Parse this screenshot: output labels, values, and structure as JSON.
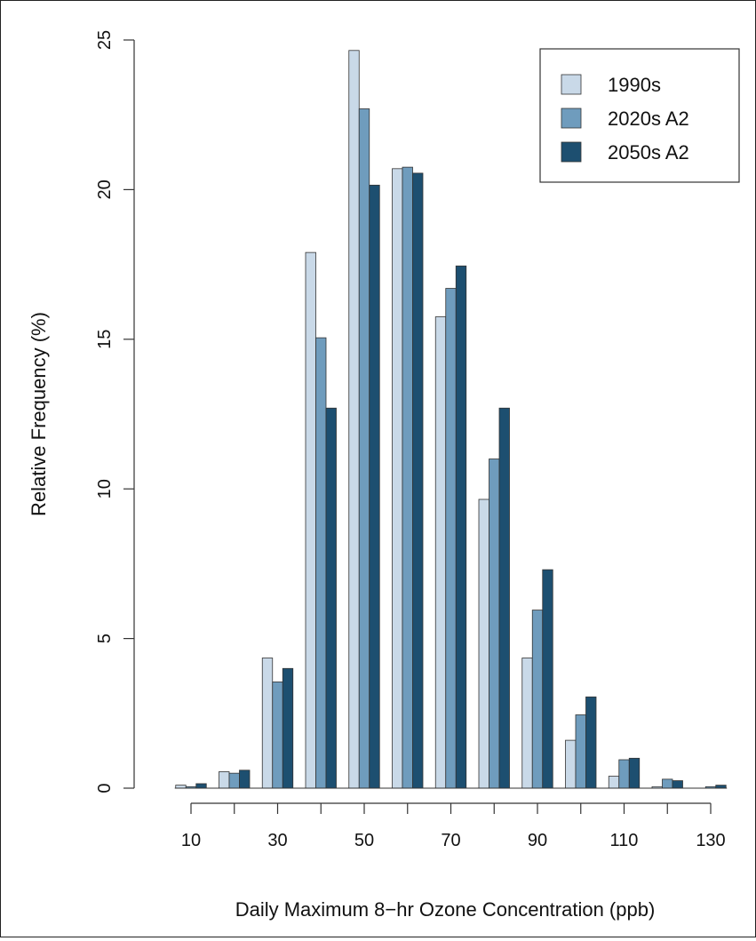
{
  "chart_data": {
    "type": "bar",
    "title": "",
    "xlabel": "Daily Maximum 8−hr Ozone Concentration (ppb)",
    "ylabel": "Relative Frequency (%)",
    "ylim": [
      0,
      25
    ],
    "yticks": [
      "0",
      "5",
      "10",
      "15",
      "20",
      "25"
    ],
    "x_tick_labels": [
      "10",
      "30",
      "50",
      "70",
      "90",
      "110",
      "130"
    ],
    "categories": [
      "10",
      "20",
      "30",
      "40",
      "50",
      "60",
      "70",
      "80",
      "90",
      "100",
      "110",
      "120",
      "130"
    ],
    "legend_position": "top-right",
    "series": [
      {
        "name": "1990s",
        "color": "#c9d9e8",
        "values": [
          0.1,
          0.55,
          4.35,
          17.9,
          24.65,
          20.7,
          15.75,
          9.65,
          4.35,
          1.6,
          0.4,
          0.05,
          0.0
        ]
      },
      {
        "name": "2020s A2",
        "color": "#6f9cbd",
        "values": [
          0.05,
          0.5,
          3.55,
          15.05,
          22.7,
          20.75,
          16.7,
          11.0,
          5.95,
          2.45,
          0.95,
          0.3,
          0.05
        ]
      },
      {
        "name": "2050s A2",
        "color": "#1d4f70",
        "values": [
          0.15,
          0.6,
          4.0,
          12.7,
          20.15,
          20.55,
          17.45,
          12.7,
          7.3,
          3.05,
          1.0,
          0.25,
          0.1
        ]
      }
    ]
  }
}
